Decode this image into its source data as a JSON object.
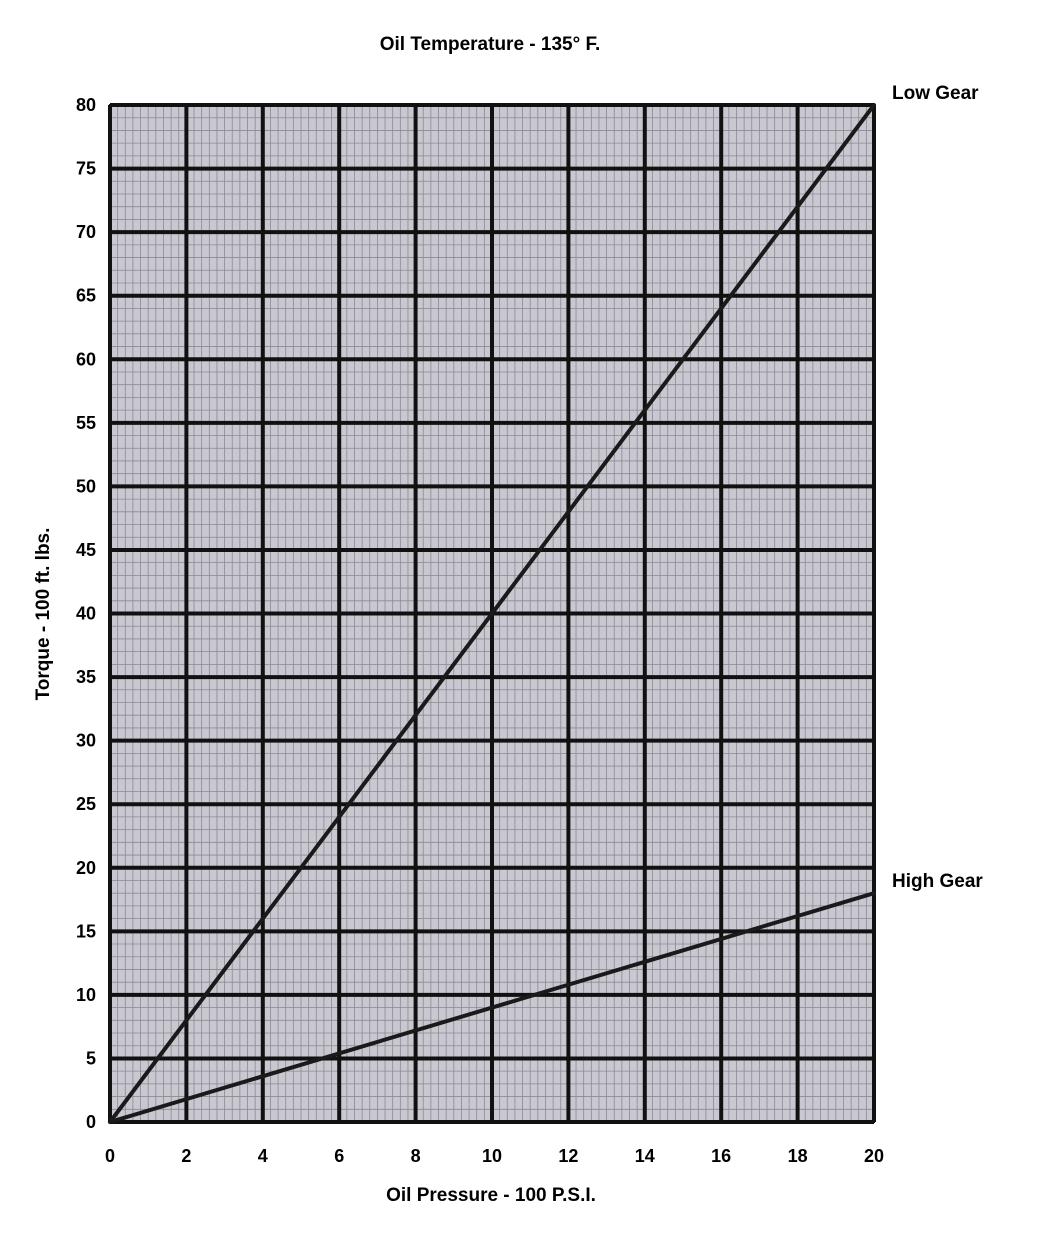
{
  "chart_data": {
    "type": "line",
    "title": "Oil Temperature - 135°  F.",
    "xlabel": "Oil Pressure - 100 P.S.I.",
    "ylabel": "Torque - 100 ft. lbs.",
    "xlim": [
      0,
      20
    ],
    "ylim": [
      0,
      80
    ],
    "x_ticks": [
      "0",
      "2",
      "4",
      "6",
      "8",
      "10",
      "12",
      "14",
      "16",
      "18",
      "20"
    ],
    "y_ticks": [
      "0",
      "5",
      "10",
      "15",
      "20",
      "25",
      "30",
      "35",
      "40",
      "45",
      "50",
      "55",
      "60",
      "65",
      "70",
      "75",
      "80"
    ],
    "grid": true,
    "colors": {
      "plot_bg": "#c9c7d0",
      "grid_major": "#111111",
      "grid_minor": "#8b8a93",
      "line": "#1a1a1a"
    },
    "series": [
      {
        "name": "Low Gear",
        "x": [
          0,
          20
        ],
        "y": [
          0,
          80
        ]
      },
      {
        "name": "High Gear",
        "x": [
          0,
          20
        ],
        "y": [
          0,
          18
        ]
      }
    ]
  }
}
